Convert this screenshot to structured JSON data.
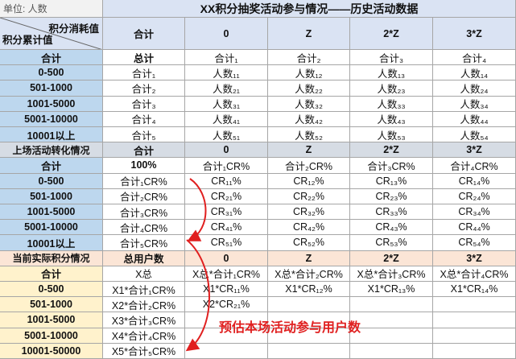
{
  "header": {
    "unit": "单位: 人数",
    "title": "XX积分抽奖活动参与情况——历史活动数据",
    "corner_top": "积分消耗值",
    "corner_bottom": "积分累计值",
    "columns": [
      "合计",
      "0",
      "Z",
      "2*Z",
      "3*Z"
    ]
  },
  "sections": [
    {
      "rows": [
        {
          "label": "合计",
          "cells": [
            "总计",
            "合计₁",
            "合计₂",
            "合计₃",
            "合计₄"
          ]
        },
        {
          "label": "0-500",
          "cells": [
            "合计₁",
            "人数₁₁",
            "人数₁₂",
            "人数₁₃",
            "人数₁₄"
          ]
        },
        {
          "label": "501-1000",
          "cells": [
            "合计₂",
            "人数₂₁",
            "人数₂₂",
            "人数₂₃",
            "人数₂₄"
          ]
        },
        {
          "label": "1001-5000",
          "cells": [
            "合计₃",
            "人数₃₁",
            "人数₃₂",
            "人数₃₃",
            "人数₃₄"
          ]
        },
        {
          "label": "5001-10000",
          "cells": [
            "合计₄",
            "人数₄₁",
            "人数₄₂",
            "人数₄₃",
            "人数₄₄"
          ]
        },
        {
          "label": "10001以上",
          "cells": [
            "合计₅",
            "人数₅₁",
            "人数₅₂",
            "人数₅₃",
            "人数₅₄"
          ]
        }
      ]
    },
    {
      "header": {
        "label": "上场活动转化情况",
        "cells": [
          "合计",
          "0",
          "Z",
          "2*Z",
          "3*Z"
        ]
      },
      "rows": [
        {
          "label": "合计",
          "cells": [
            "100%",
            "合计₁CR%",
            "合计₂CR%",
            "合计₃CR%",
            "合计₄CR%"
          ]
        },
        {
          "label": "0-500",
          "cells": [
            "合计₁CR%",
            "CR₁₁%",
            "CR₁₂%",
            "CR₁₃%",
            "CR₁₄%"
          ]
        },
        {
          "label": "501-1000",
          "cells": [
            "合计₂CR%",
            "CR₂₁%",
            "CR₂₂%",
            "CR₂₃%",
            "CR₂₄%"
          ]
        },
        {
          "label": "1001-5000",
          "cells": [
            "合计₃CR%",
            "CR₃₁%",
            "CR₃₂%",
            "CR₃₃%",
            "CR₃₄%"
          ]
        },
        {
          "label": "5001-10000",
          "cells": [
            "合计₄CR%",
            "CR₄₁%",
            "CR₄₂%",
            "CR₄₃%",
            "CR₄₄%"
          ]
        },
        {
          "label": "10001以上",
          "cells": [
            "合计₅CR%",
            "CR₅₁%",
            "CR₅₂%",
            "CR₅₃%",
            "CR₅₄%"
          ]
        }
      ]
    },
    {
      "header": {
        "label": "当前实际积分情况",
        "cells": [
          "总用户数",
          "0",
          "Z",
          "2*Z",
          "3*Z"
        ]
      },
      "rows": [
        {
          "label": "合计",
          "cells": [
            "X总",
            "X总*合计₁CR%",
            "X总*合计₂CR%",
            "X总*合计₃CR%",
            "X总*合计₄CR%"
          ]
        },
        {
          "label": "0-500",
          "cells": [
            "X1*合计₁CR%",
            "X1*CR₁₁%",
            "X1*CR₁₂%",
            "X1*CR₁₃%",
            "X1*CR₁₄%"
          ]
        },
        {
          "label": "501-1000",
          "cells": [
            "X2*合计₂CR%",
            "X2*CR₂₁%"
          ]
        },
        {
          "label": "1001-5000",
          "cells": [
            "X3*合计₃CR%"
          ]
        },
        {
          "label": "5001-10000",
          "cells": [
            "X4*合计₄CR%"
          ]
        },
        {
          "label": "10001-50000",
          "cells": [
            "X5*合计₅CR%"
          ]
        }
      ]
    }
  ],
  "annotation": "预估本场活动参与用户数"
}
